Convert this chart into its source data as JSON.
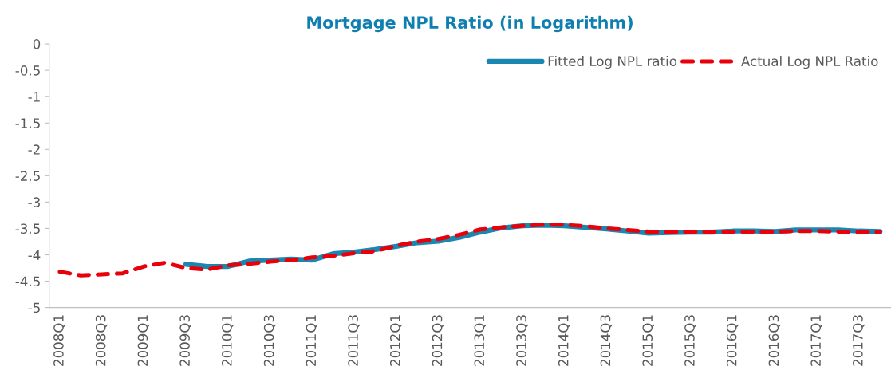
{
  "chart_data": {
    "type": "line",
    "title": "Mortgage NPL Ratio (in Logarithm)",
    "categories": [
      "2008Q1",
      null,
      "2008Q3",
      null,
      "2009Q1",
      null,
      "2009Q3",
      null,
      "2010Q1",
      null,
      "2010Q3",
      null,
      "2011Q1",
      null,
      "2011Q3",
      null,
      "2012Q1",
      null,
      "2012Q3",
      null,
      "2013Q1",
      null,
      "2013Q3",
      null,
      "2014Q1",
      null,
      "2014Q3",
      null,
      "2015Q1",
      null,
      "2015Q3",
      null,
      "2016Q1",
      null,
      "2016Q3",
      null,
      "2017Q1",
      null,
      "2017Q3",
      null
    ],
    "series": [
      {
        "name": "Fitted Log NPL ratio",
        "color": "#1a87b0",
        "line_style": "solid",
        "values": [
          null,
          null,
          null,
          null,
          null,
          null,
          -4.18,
          -4.22,
          -4.22,
          -4.12,
          -4.1,
          -4.08,
          -4.1,
          -3.98,
          -3.95,
          -3.9,
          -3.84,
          -3.77,
          -3.74,
          -3.67,
          -3.57,
          -3.49,
          -3.45,
          -3.44,
          -3.45,
          -3.48,
          -3.51,
          -3.55,
          -3.59,
          -3.58,
          -3.57,
          -3.57,
          -3.55,
          -3.55,
          -3.56,
          -3.53,
          -3.53,
          -3.53,
          -3.55,
          -3.56
        ]
      },
      {
        "name": "Actual Log NPL Ratio",
        "color": "#e8000b",
        "line_style": "dashed",
        "values": [
          -4.32,
          -4.39,
          -4.37,
          -4.35,
          -4.22,
          -4.15,
          -4.25,
          -4.28,
          -4.2,
          -4.17,
          -4.13,
          -4.1,
          -4.05,
          -4.02,
          -3.97,
          -3.93,
          -3.83,
          -3.75,
          -3.7,
          -3.62,
          -3.52,
          -3.48,
          -3.45,
          -3.43,
          -3.43,
          -3.46,
          -3.5,
          -3.53,
          -3.56,
          -3.56,
          -3.56,
          -3.56,
          -3.56,
          -3.56,
          -3.56,
          -3.55,
          -3.55,
          -3.56,
          -3.57,
          -3.57
        ]
      }
    ],
    "ylim": [
      -5,
      0
    ],
    "yticks": [
      0,
      -0.5,
      -1,
      -1.5,
      -2,
      -2.5,
      -3,
      -3.5,
      -4,
      -4.5,
      -5
    ],
    "grid": false,
    "legend": "top right"
  }
}
